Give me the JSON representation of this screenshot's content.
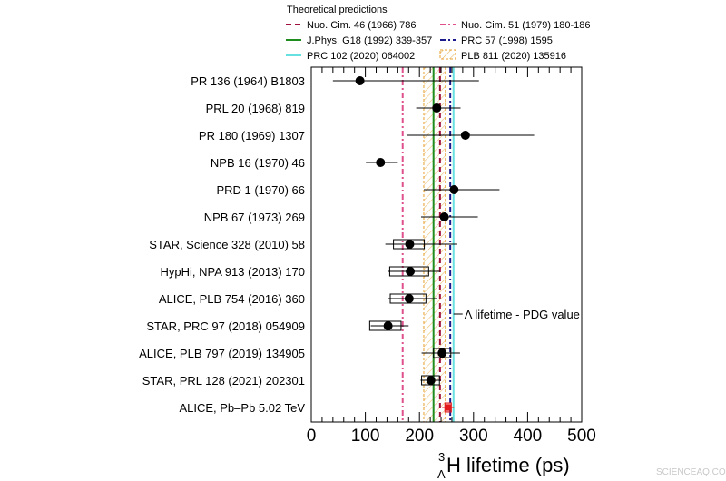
{
  "chart_data": {
    "type": "scatter",
    "xlabel": {
      "sup": "3",
      "sub": "Λ",
      "main": "H lifetime (ps)"
    },
    "xlim": [
      0,
      500
    ],
    "xticks": [
      0,
      100,
      200,
      300,
      400,
      500
    ],
    "grid": false,
    "legend": {
      "title": "Theoretical predictions",
      "placement": "top",
      "entries": [
        {
          "label": "Nuo. Cim. 46 (1966) 786",
          "color": "#a0103c",
          "style": "dash"
        },
        {
          "label": "Nuo. Cim. 51 (1979) 180-186",
          "color": "#e0508c",
          "style": "dashdot"
        },
        {
          "label": "J.Phys. G18 (1992) 339-357",
          "color": "#1f8c1f",
          "style": "solid"
        },
        {
          "label": "PRC 57 (1998) 1595",
          "color": "#1a1a8c",
          "style": "dashdot"
        },
        {
          "label": "PRC 102 (2020) 064002",
          "color": "#66e0e0",
          "style": "solid"
        },
        {
          "label": "PLB 811 (2020) 135916",
          "color": "#e8a030",
          "style": "band"
        }
      ]
    },
    "theory": [
      {
        "label": "Nuo. Cim. 46 (1966) 786",
        "value": 238
      },
      {
        "label": "Nuo. Cim. 51 (1979) 180-186",
        "value": 169
      },
      {
        "label": "J.Phys. G18 (1992) 339-357",
        "value": 226
      },
      {
        "label": "PRC 57 (1998) 1595",
        "value": 257
      },
      {
        "label": "PRC 102 (2020) 064002",
        "value": 263
      },
      {
        "label": "PLB 811 (2020) 135916",
        "low": 208,
        "high": 248
      }
    ],
    "pdg_lambda": {
      "label": "Λ lifetime - PDG value",
      "value": 263
    },
    "measurements": [
      {
        "label": "PR 136 (1964) B1803",
        "value": 90,
        "stat_lo": 40,
        "stat_hi": 310,
        "syst_lo": null,
        "syst_hi": null,
        "highlight": false
      },
      {
        "label": "PRL 20 (1968) 819",
        "value": 232,
        "stat_lo": 194,
        "stat_hi": 276,
        "syst_lo": null,
        "syst_hi": null,
        "highlight": false
      },
      {
        "label": "PR 180 (1969) 1307",
        "value": 285,
        "stat_lo": 177,
        "stat_hi": 412,
        "syst_lo": null,
        "syst_hi": null,
        "highlight": false
      },
      {
        "label": "NPB 16 (1970) 46",
        "value": 128,
        "stat_lo": 101,
        "stat_hi": 160,
        "syst_lo": null,
        "syst_hi": null,
        "highlight": false
      },
      {
        "label": "PRD 1 (1970) 66",
        "value": 264,
        "stat_lo": 208,
        "stat_hi": 348,
        "syst_lo": null,
        "syst_hi": null,
        "highlight": false
      },
      {
        "label": "NPB 67 (1973) 269",
        "value": 246,
        "stat_lo": 203,
        "stat_hi": 308,
        "syst_lo": null,
        "syst_hi": null,
        "highlight": false
      },
      {
        "label": "STAR, Science 328 (2010) 58",
        "value": 182,
        "stat_lo": 137,
        "stat_hi": 270,
        "syst_lo": 152,
        "syst_hi": 209,
        "highlight": false
      },
      {
        "label": "HypHi, NPA 913 (2013) 170",
        "value": 183,
        "stat_lo": 141,
        "stat_hi": 238,
        "syst_lo": 145,
        "syst_hi": 217,
        "highlight": false
      },
      {
        "label": "ALICE, PLB 754 (2016) 360",
        "value": 181,
        "stat_lo": 142,
        "stat_hi": 232,
        "syst_lo": 146,
        "syst_hi": 212,
        "highlight": false
      },
      {
        "label": "STAR, PRC 97 (2018) 054909",
        "value": 142,
        "stat_lo": 110,
        "stat_hi": 180,
        "syst_lo": 108,
        "syst_hi": 166,
        "highlight": false
      },
      {
        "label": "ALICE, PLB 797 (2019) 134905",
        "value": 242,
        "stat_lo": 204,
        "stat_hi": 275,
        "syst_lo": 226,
        "syst_hi": 258,
        "highlight": false
      },
      {
        "label": "STAR, PRL 128 (2021) 202301",
        "value": 221,
        "stat_lo": 202,
        "stat_hi": 240,
        "syst_lo": 204,
        "syst_hi": 237,
        "highlight": false
      },
      {
        "label": "ALICE, Pb–Pb 5.02 TeV",
        "value": 253,
        "stat_lo": 242,
        "stat_hi": 264,
        "syst_lo": 247,
        "syst_hi": 259,
        "highlight": true
      }
    ],
    "highlight_color": "#e31a1c"
  },
  "watermark": "SCIENCEAQ.COM"
}
